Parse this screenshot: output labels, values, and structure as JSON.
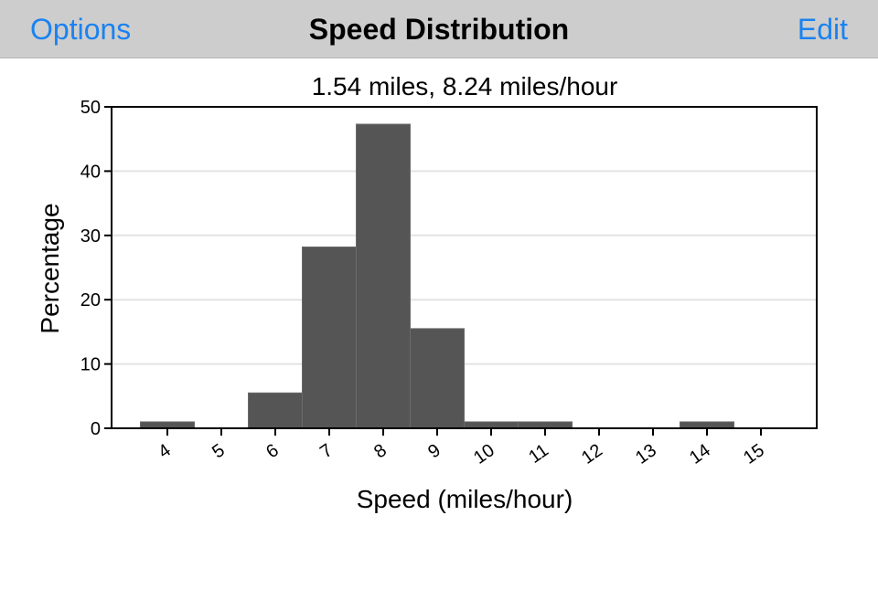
{
  "navbar": {
    "left_label": "Options",
    "title": "Speed Distribution",
    "right_label": "Edit",
    "tint_color": "#1a82f0",
    "background_color": "#cdcdcd"
  },
  "chart_data": {
    "type": "bar",
    "title": "1.54 miles, 8.24 miles/hour",
    "xlabel": "Speed (miles/hour)",
    "ylabel": "Percentage",
    "categories": [
      "4",
      "5",
      "6",
      "7",
      "8",
      "9",
      "10",
      "11",
      "12",
      "13",
      "14",
      "15"
    ],
    "values": [
      1,
      0,
      5.5,
      28.2,
      47.3,
      15.5,
      1,
      1,
      0,
      0,
      1,
      0
    ],
    "ylim": [
      0,
      50
    ],
    "yticks": [
      0,
      10,
      20,
      30,
      40,
      50
    ],
    "grid": true,
    "bar_color": "#555555"
  }
}
